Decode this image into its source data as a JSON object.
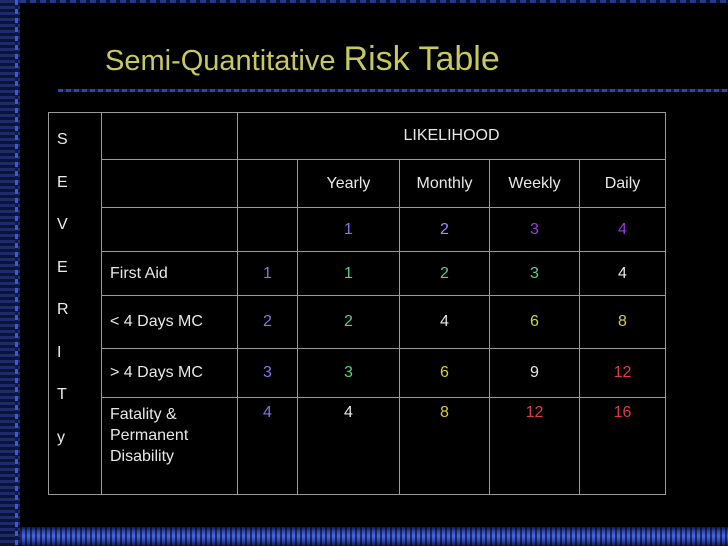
{
  "title": {
    "part1": "Semi-Quantitative ",
    "part2": "Risk Table"
  },
  "table": {
    "likelihood_header": "LIKELIHOOD",
    "severity_letters": [
      "S",
      "E",
      "V",
      "E",
      "R",
      "I",
      "T",
      "y"
    ],
    "columns": [
      "Yearly",
      "Monthly",
      "Weekly",
      "Daily"
    ],
    "likelihood_scores": [
      "1",
      "2",
      "3",
      "4"
    ],
    "rows": [
      {
        "label": "First Aid",
        "score": "1",
        "values": [
          "1",
          "2",
          "3",
          "4"
        ]
      },
      {
        "label": "< 4 Days MC",
        "score": "2",
        "values": [
          "2",
          "4",
          "6",
          "8"
        ]
      },
      {
        "label": "> 4 Days MC",
        "score": "3",
        "values": [
          "3",
          "6",
          "9",
          "12"
        ]
      },
      {
        "label": "Fatality & Permanent Disability",
        "score": "4",
        "values": [
          "4",
          "8",
          "12",
          "16"
        ]
      }
    ]
  },
  "colors": {
    "title": "#c8c860",
    "low": "#e8e8e8",
    "score_blue": "#7a7ae0",
    "green": "#5cd07a",
    "yellow": "#d4d03a",
    "red": "#e03a4a",
    "purple": "#9a3ae0"
  }
}
